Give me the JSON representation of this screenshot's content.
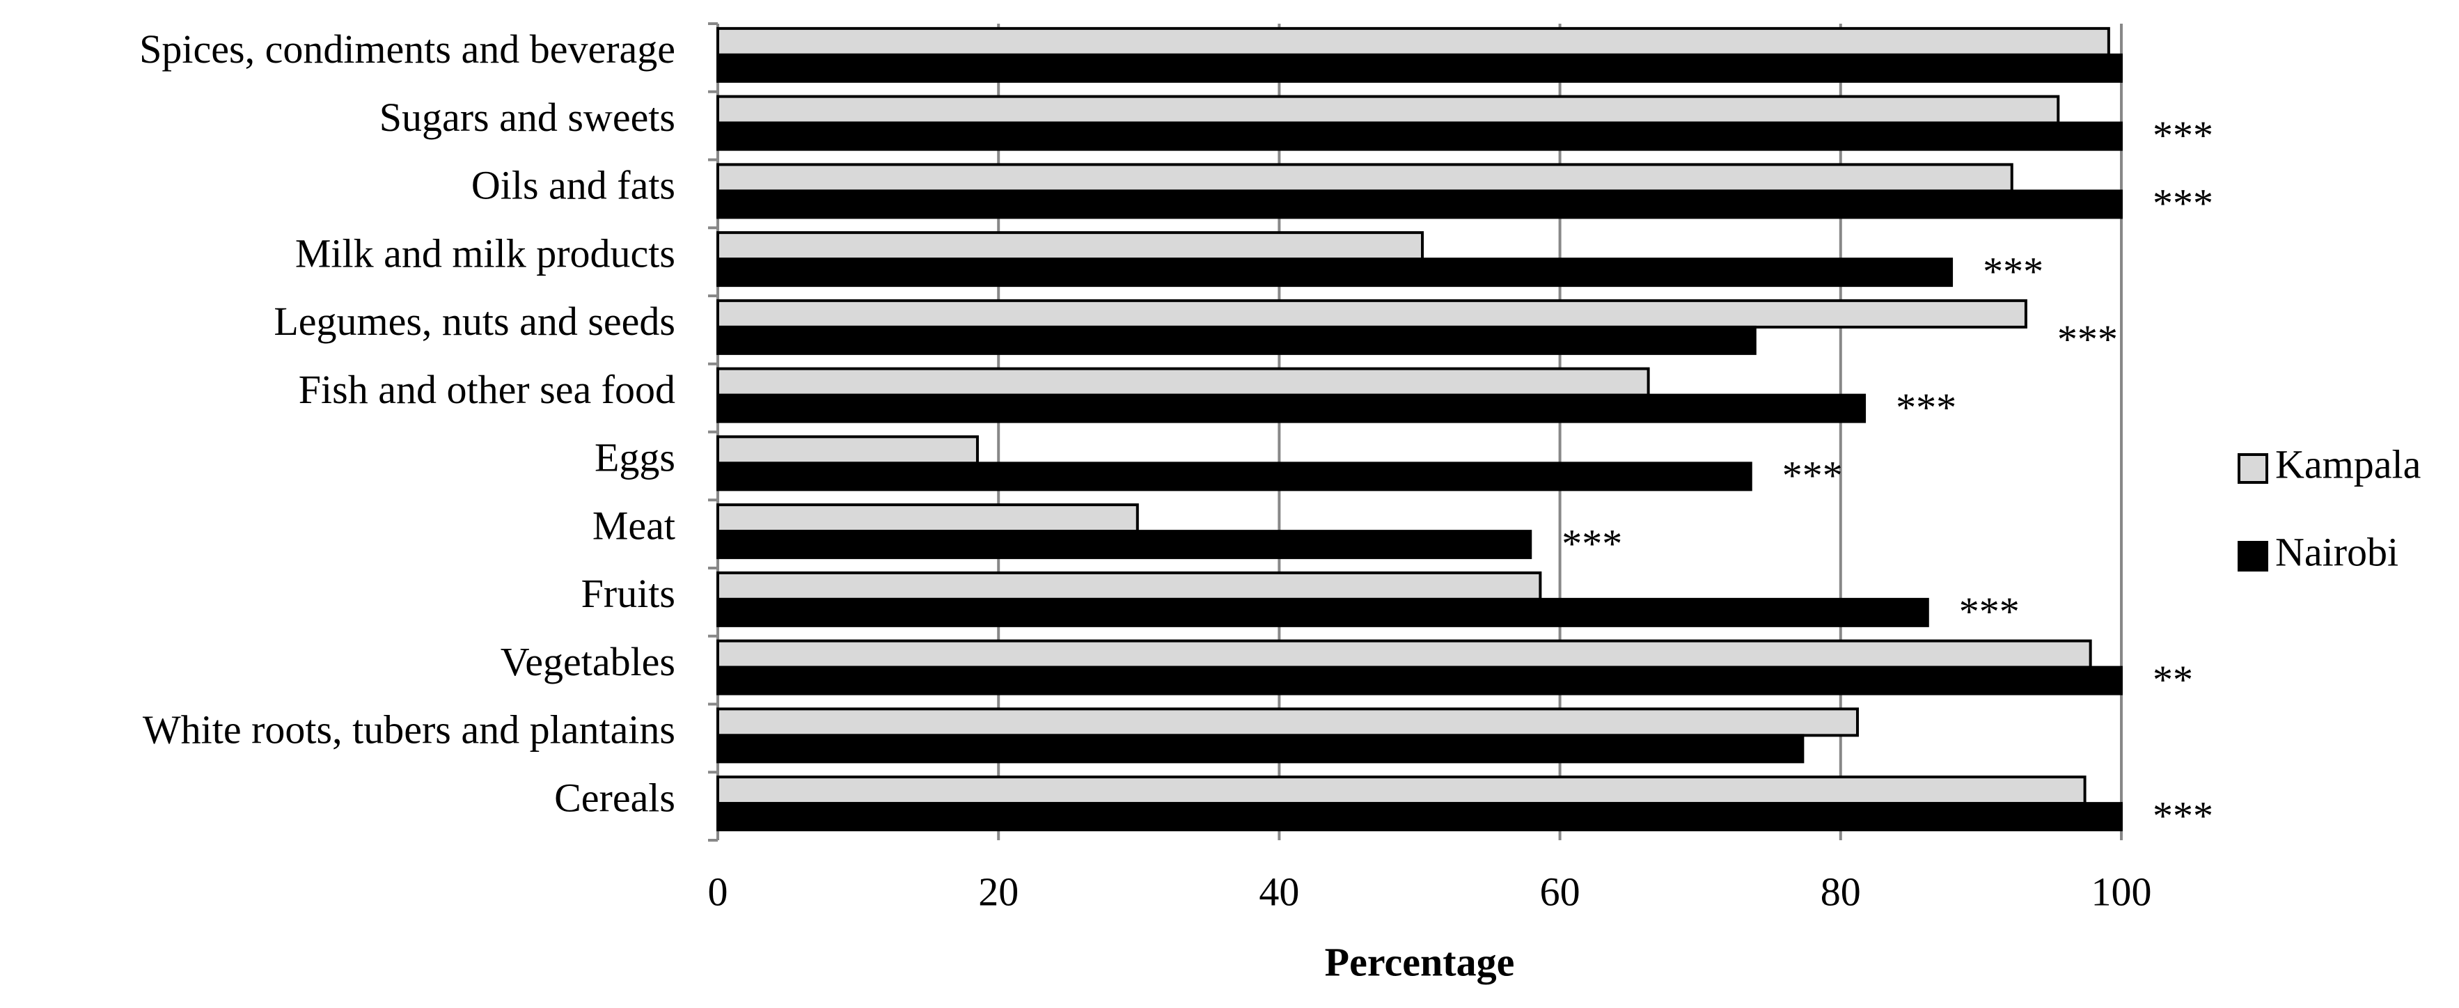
{
  "chart_data": {
    "type": "hbar",
    "categories": [
      "Spices, condiments and beverage",
      "Sugars and sweets",
      "Oils and fats",
      "Milk and milk products",
      "Legumes, nuts and seeds",
      "Fish and other sea food",
      "Eggs",
      "Meat",
      "Fruits",
      "Vegetables",
      "White roots, tubers and plantains",
      "Cereals"
    ],
    "series": [
      {
        "name": "Kampala",
        "color": "#d9d9d9",
        "values": [
          99.1,
          95.5,
          92.2,
          50.2,
          93.2,
          66.3,
          18.5,
          29.9,
          58.6,
          97.8,
          81.2,
          97.4
        ]
      },
      {
        "name": "Nairobi",
        "color": "#000000",
        "values": [
          100,
          100,
          100,
          87.9,
          73.9,
          81.7,
          73.6,
          57.9,
          86.2,
          100,
          77.3,
          100
        ]
      }
    ],
    "annotations": [
      null,
      "***",
      "***",
      "***",
      "***",
      "***",
      "***",
      "***",
      "***",
      "**",
      null,
      "***"
    ],
    "xlabel": "Percentage",
    "xlim": [
      0,
      100
    ],
    "xticks": [
      0,
      20,
      40,
      60,
      80,
      100
    ],
    "grid": true,
    "legend": "right"
  }
}
